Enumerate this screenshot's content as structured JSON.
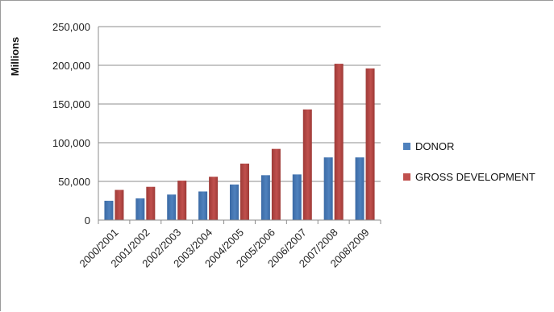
{
  "chart_data": {
    "type": "bar",
    "title": "",
    "xlabel": "",
    "ylabel": "Millions",
    "ylim": [
      0,
      250000
    ],
    "yticks": [
      "0",
      "50,000",
      "100,000",
      "150,000",
      "200,000",
      "250,000"
    ],
    "ytick_values": [
      0,
      50000,
      100000,
      150000,
      200000,
      250000
    ],
    "grid": "horizontal",
    "legend_position": "right",
    "categories": [
      "2000/2001",
      "2001/2002",
      "2002/2003",
      "2003/2004",
      "2004/2005",
      "2005/2006",
      "2006/2007",
      "2007/2008",
      "2008/2009"
    ],
    "series": [
      {
        "name": "DONOR",
        "color": "#4f81bd",
        "values": [
          25000,
          28000,
          33000,
          37000,
          46000,
          58000,
          59000,
          81000,
          81000
        ]
      },
      {
        "name": "GROSS DEVELOPMENT",
        "color": "#c0504d",
        "values": [
          39000,
          43000,
          51000,
          56000,
          73000,
          92000,
          143000,
          202000,
          196000
        ]
      }
    ]
  }
}
